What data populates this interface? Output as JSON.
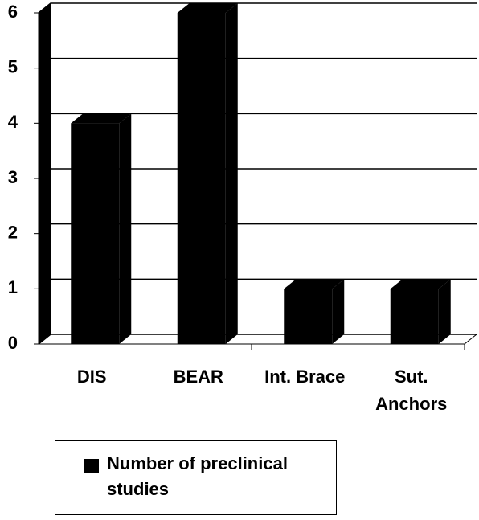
{
  "chart_data": {
    "type": "bar3d",
    "categories": [
      "DIS",
      "BEAR",
      "Int. Brace",
      "Sut. Anchors"
    ],
    "series": [
      {
        "name": "Number of preclinical studies",
        "color": "#000000",
        "values": [
          4,
          6,
          1,
          1
        ]
      }
    ],
    "ylim": [
      0,
      6
    ],
    "yticks": [
      0,
      1,
      2,
      3,
      4,
      5,
      6
    ],
    "grid": true,
    "legend": "bottom"
  }
}
